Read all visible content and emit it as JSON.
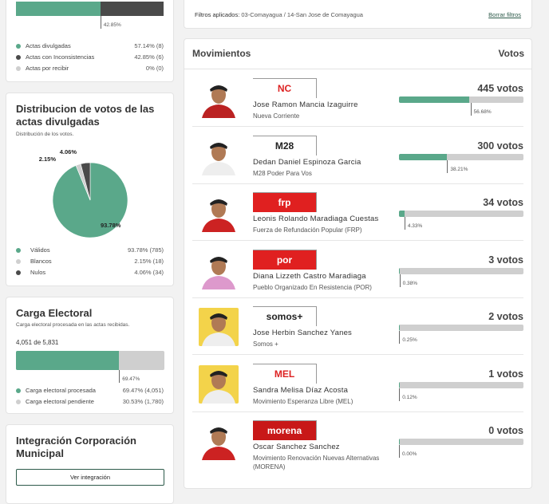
{
  "actas": {
    "bar_label": "42.85%",
    "divulgadas_pct": 57.14,
    "legend": [
      {
        "label": "Actas divulgadas",
        "value": "57.14% (8)",
        "color": "#5aa88a"
      },
      {
        "label": "Actas con Inconsistencias",
        "value": "42.85% (6)",
        "color": "#4a4a4a"
      },
      {
        "label": "Actas por recibir",
        "value": "0% (0)",
        "color": "#cfcfcf"
      }
    ]
  },
  "distribucion": {
    "title": "Distribucion de votos de las actas divulgadas",
    "subtitle": "Distribución de los votos.",
    "chart_data": {
      "type": "pie",
      "labels": [
        "Válidos",
        "Blancos",
        "Nulos"
      ],
      "values": [
        93.78,
        2.15,
        4.06
      ],
      "counts": [
        785,
        18,
        34
      ],
      "colors": [
        "#5aa88a",
        "#cfcfcf",
        "#4a4a4a"
      ],
      "slice_labels": [
        "93.78%",
        "2.15%",
        "4.06%"
      ]
    },
    "legend": [
      {
        "label": "Válidos",
        "value": "93.78% (785)"
      },
      {
        "label": "Blancos",
        "value": "2.15% (18)"
      },
      {
        "label": "Nulos",
        "value": "4.06% (34)"
      }
    ]
  },
  "carga": {
    "title": "Carga Electoral",
    "subtitle": "Carga electoral procesada en las actas recibidas.",
    "count": "4,051 de 5,831",
    "pct": 69.47,
    "bar_label": "69.47%",
    "legend": [
      {
        "label": "Carga electoral procesada",
        "value": "69.47% (4,051)",
        "color": "#5aa88a"
      },
      {
        "label": "Carga electoral pendiente",
        "value": "30.53% (1,780)",
        "color": "#cfcfcf"
      }
    ]
  },
  "integracion": {
    "title": "Integración Corporación Municipal",
    "button": "Ver integración"
  },
  "filtros": {
    "label": "Filtros aplicados:",
    "value": "03-Comayagua / 14-San Jose de Comayagua",
    "clear": "Borrar filtros"
  },
  "movimientos": {
    "title": "Movimientos",
    "votes_header": "Votos",
    "rows": [
      {
        "name": "Jose Ramon Mancia Izaguirre",
        "party": "Nueva Corriente",
        "votes": "445 votos",
        "pct": 56.68,
        "pct_label": "56.68%",
        "logo": "NC",
        "logo_bg": "#fff",
        "logo_fg": "#d22"
      },
      {
        "name": "Dedan Daniel Espinoza Garcia",
        "party": "M28 Poder Para Vos",
        "votes": "300 votos",
        "pct": 38.21,
        "pct_label": "38.21%",
        "logo": "M28",
        "logo_bg": "#fff",
        "logo_fg": "#222"
      },
      {
        "name": "Leonis Rolando Maradiaga Cuestas",
        "party": "Fuerza de Refundación Popular (FRP)",
        "votes": "34 votos",
        "pct": 4.33,
        "pct_label": "4.33%",
        "logo": "frp",
        "logo_bg": "#e02020",
        "logo_fg": "#fff"
      },
      {
        "name": "Diana Lizzeth Castro Maradiaga",
        "party": "Pueblo Organizado En Resistencia (POR)",
        "votes": "3 votos",
        "pct": 0.38,
        "pct_label": "0.38%",
        "logo": "por",
        "logo_bg": "#e02020",
        "logo_fg": "#fff"
      },
      {
        "name": "Jose Herbin Sanchez Yanes",
        "party": "Somos +",
        "votes": "2 votos",
        "pct": 0.25,
        "pct_label": "0.25%",
        "logo": "somos+",
        "logo_bg": "#fff",
        "logo_fg": "#222"
      },
      {
        "name": "Sandra Melisa Díaz Acosta",
        "party": "Movimiento Esperanza Libre (MEL)",
        "votes": "1 votos",
        "pct": 0.12,
        "pct_label": "0.12%",
        "logo": "MEL",
        "logo_bg": "#fff",
        "logo_fg": "#d22"
      },
      {
        "name": "Oscar Sanchez Sanchez",
        "party": "Movimiento Renovación Nuevas Alternativas (MORENA)",
        "votes": "0 votos",
        "pct": 0,
        "pct_label": "0.00%",
        "logo": "morena",
        "logo_bg": "#c81818",
        "logo_fg": "#fff"
      }
    ]
  }
}
